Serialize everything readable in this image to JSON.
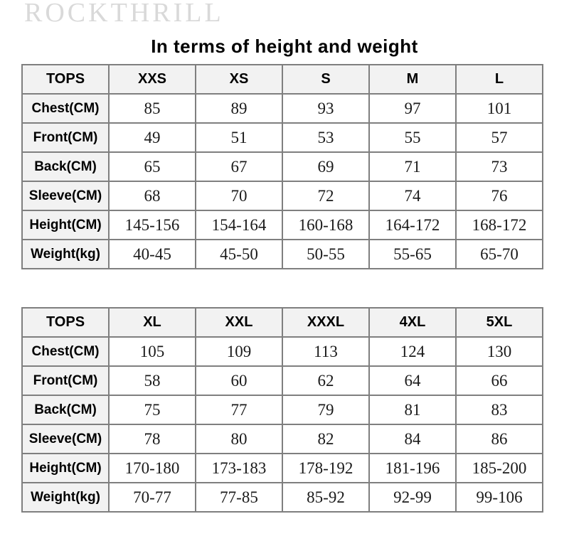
{
  "brand": "ROCKTHRILL",
  "title": "In terms of height and weight",
  "colors": {
    "brand_watermark": "#d9d9d9",
    "table_border_outer": "#4d4d4d",
    "table_border_inner": "#7f7f7f",
    "header_cell_bg": "#f2f2f2",
    "label_cell_bg": "#f2f2f2",
    "value_cell_bg": "#ffffff",
    "text": "#000000"
  },
  "tables": [
    {
      "headers": [
        "TOPS",
        "XXS",
        "XS",
        "S",
        "M",
        "L"
      ],
      "rows": [
        {
          "label": "Chest(CM)",
          "values": [
            "85",
            "89",
            "93",
            "97",
            "101"
          ]
        },
        {
          "label": "Front(CM)",
          "values": [
            "49",
            "51",
            "53",
            "55",
            "57"
          ]
        },
        {
          "label": "Back(CM)",
          "values": [
            "65",
            "67",
            "69",
            "71",
            "73"
          ]
        },
        {
          "label": "Sleeve(CM)",
          "values": [
            "68",
            "70",
            "72",
            "74",
            "76"
          ]
        },
        {
          "label": "Height(CM)",
          "values": [
            "145-156",
            "154-164",
            "160-168",
            "164-172",
            "168-172"
          ]
        },
        {
          "label": "Weight(kg)",
          "values": [
            "40-45",
            "45-50",
            "50-55",
            "55-65",
            "65-70"
          ]
        }
      ]
    },
    {
      "headers": [
        "TOPS",
        "XL",
        "XXL",
        "XXXL",
        "4XL",
        "5XL"
      ],
      "rows": [
        {
          "label": "Chest(CM)",
          "values": [
            "105",
            "109",
            "113",
            "124",
            "130"
          ]
        },
        {
          "label": "Front(CM)",
          "values": [
            "58",
            "60",
            "62",
            "64",
            "66"
          ]
        },
        {
          "label": "Back(CM)",
          "values": [
            "75",
            "77",
            "79",
            "81",
            "83"
          ]
        },
        {
          "label": "Sleeve(CM)",
          "values": [
            "78",
            "80",
            "82",
            "84",
            "86"
          ]
        },
        {
          "label": "Height(CM)",
          "values": [
            "170-180",
            "173-183",
            "178-192",
            "181-196",
            "185-200"
          ]
        },
        {
          "label": "Weight(kg)",
          "values": [
            "70-77",
            "77-85",
            "85-92",
            "92-99",
            "99-106"
          ]
        }
      ]
    }
  ]
}
